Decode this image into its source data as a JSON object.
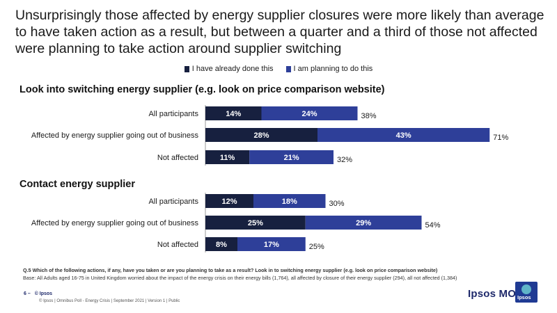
{
  "headline": "Unsurprisingly those affected by energy supplier closures were more likely than average to have taken action as a result, but between a quarter and a third of those not affected were planning to take action around supplier switching",
  "colors": {
    "done": "#17203f",
    "planning": "#2e3f99",
    "text": "#1a1a1a",
    "brand": "#1f2a6b"
  },
  "chart_data": {
    "type": "bar",
    "orientation": "horizontal",
    "stacked": true,
    "legend": [
      "I have already done this",
      "I am planning to do this"
    ],
    "legend_position": "top",
    "unit": "%",
    "panels": [
      {
        "title": "Look into switching energy supplier (e.g. look on price comparison website)",
        "categories": [
          "All participants",
          "Affected by energy supplier going out of business",
          "Not affected"
        ],
        "series": [
          {
            "name": "I have already done this",
            "values": [
              14,
              28,
              11
            ]
          },
          {
            "name": "I am planning to do this",
            "values": [
              24,
              43,
              21
            ]
          }
        ],
        "totals": [
          38,
          71,
          32
        ]
      },
      {
        "title": "Contact energy supplier",
        "categories": [
          "All participants",
          "Affected by energy supplier going out of business",
          "Not affected"
        ],
        "series": [
          {
            "name": "I have already done this",
            "values": [
              12,
              25,
              8
            ]
          },
          {
            "name": "I am planning to do this",
            "values": [
              18,
              29,
              17
            ]
          }
        ],
        "totals": [
          30,
          54,
          25
        ]
      }
    ]
  },
  "footer": {
    "question": "Q.5 Which of the following actions, if any, have you taken or are you planning to take as a result? Look in to switching energy supplier (e.g. look on price comparison website)",
    "base": "Base: All Adults aged 16-75 in United Kingdom worried about the impact of the energy crisis on their energy bills (1,764), all affected by closure of their energy supplier (294), all not affected (1,384)",
    "page": "6 –",
    "source": "© Ipsos",
    "copyright": "© Ipsos | Omnibus Poll - Energy Crisis | September 2021 | Version 1 | Public",
    "brand": "Ipsos MORI",
    "logo_text": "Ipsos"
  }
}
